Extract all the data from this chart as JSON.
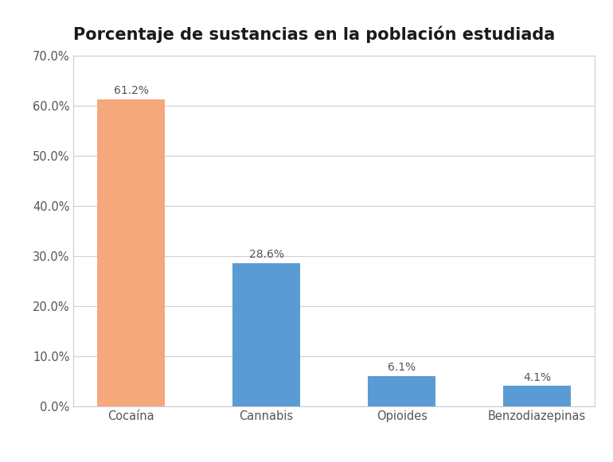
{
  "title": "Porcentaje de sustancias en la población estudiada",
  "categories": [
    "Cocaína",
    "Cannabis",
    "Opioides",
    "Benzodiazepinas"
  ],
  "values": [
    61.2,
    28.6,
    6.1,
    4.1
  ],
  "bar_colors": [
    "#f4a87c",
    "#5b9bd5",
    "#5b9bd5",
    "#5b9bd5"
  ],
  "bar_labels": [
    "61.2%",
    "28.6%",
    "6.1%",
    "4.1%"
  ],
  "ylim": [
    0,
    70
  ],
  "yticks": [
    0,
    10,
    20,
    30,
    40,
    50,
    60,
    70
  ],
  "ytick_labels": [
    "0.0%",
    "10.0%",
    "20.0%",
    "30.0%",
    "40.0%",
    "50.0%",
    "60.0%",
    "70.0%"
  ],
  "title_fontsize": 15,
  "label_fontsize": 10,
  "tick_fontsize": 10.5,
  "background_color": "#ffffff",
  "plot_bg_color": "#ffffff",
  "grid_color": "#d0d0d0",
  "bar_width": 0.5
}
